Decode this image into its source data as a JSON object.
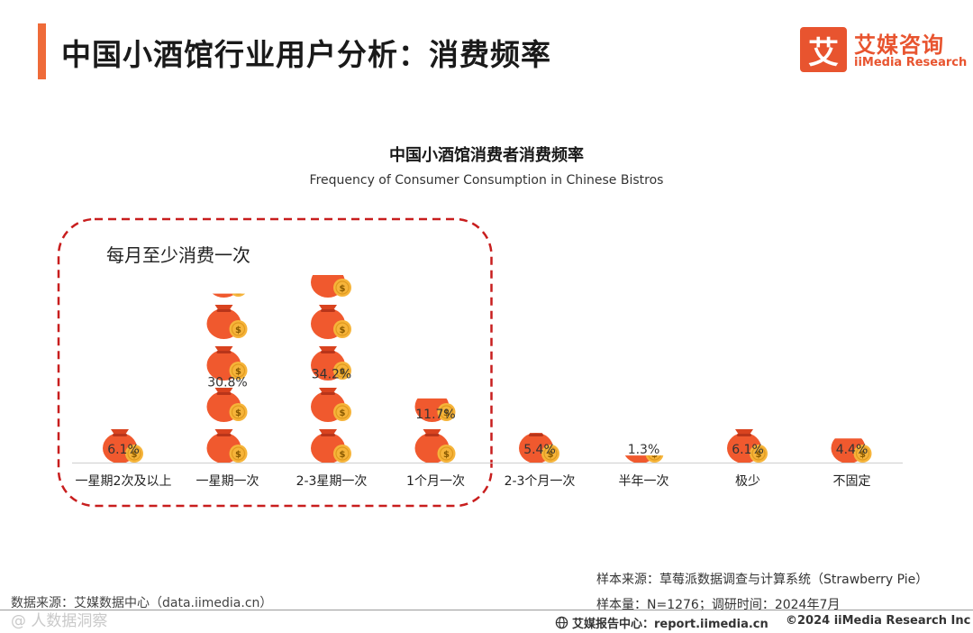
{
  "header": {
    "title": "中国小酒馆行业用户分析：消费频率",
    "logo_mark": "艾",
    "logo_cn": "艾媒咨询",
    "logo_en": "iiMedia Research"
  },
  "chart_data": {
    "type": "bar",
    "title": "中国小酒馆消费者消费频率",
    "subtitle": "Frequency of Consumer Consumption in Chinese Bistros",
    "categories": [
      "一星期2次及以上",
      "一星期一次",
      "2-3星期一次",
      "1个月一次",
      "2-3个月一次",
      "半年一次",
      "极少",
      "不固定"
    ],
    "values": [
      6.1,
      30.8,
      34.2,
      11.7,
      5.4,
      1.3,
      6.1,
      4.4
    ],
    "value_labels": [
      "6.1%",
      "30.8%",
      "34.2%",
      "11.7%",
      "5.4%",
      "1.3%",
      "6.1%",
      "4.4%"
    ],
    "unit": "%",
    "ylim": [
      0,
      34.2
    ],
    "highlight": {
      "label": "每月至少消费一次",
      "categories": [
        "一星期2次及以上",
        "一星期一次",
        "2-3星期一次",
        "1个月一次"
      ]
    },
    "colors": {
      "bag": "#f0592e",
      "bag_dark": "#d9431f",
      "coin": "#f6b43a",
      "coin_dark": "#e09a1f",
      "highlight_border": "#c81e1e"
    }
  },
  "sources": {
    "sample_source": "样本来源：草莓派数据调查与计算系统（Strawberry Pie）",
    "sample_size": "样本量：N=1276；调研时间：2024年7月",
    "data_source": "数据来源：艾媒数据中心（data.iimedia.cn）",
    "watermark": "@ 人数据洞察"
  },
  "footer": {
    "report_center": "艾媒报告中心：report.iimedia.cn",
    "copyright": "©2024  iiMedia Research  Inc"
  }
}
